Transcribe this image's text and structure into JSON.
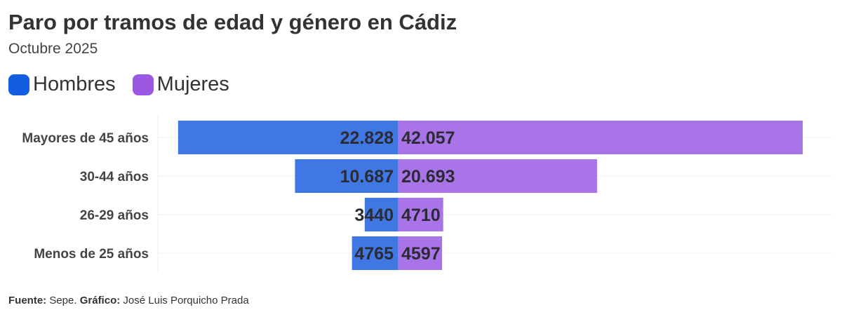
{
  "chart_data": {
    "type": "bar",
    "orientation": "horizontal-diverging",
    "title": "Paro por tramos de edad y género en Cádiz",
    "subtitle": "Octubre 2025",
    "categories": [
      "Mayores de 45 años",
      "30-44 años",
      "26-29 años",
      "Menos de 25 años"
    ],
    "series": [
      {
        "name": "Hombres",
        "values": [
          22828,
          10687,
          3440,
          4765
        ],
        "labels": [
          "22.828",
          "10.687",
          "3440",
          "4765"
        ],
        "color": "#4078e3",
        "legend_color": "#155de0"
      },
      {
        "name": "Mujeres",
        "values": [
          42057,
          20693,
          4710,
          4597
        ],
        "labels": [
          "42.057",
          "20.693",
          "4710",
          "4597"
        ],
        "color": "#a874e8",
        "legend_color": "#9b59e3"
      }
    ],
    "legend": "top-left",
    "grid": true
  },
  "footer": {
    "source_label": "Fuente:",
    "source": " Sepe. ",
    "credit_label": "Gráfico:",
    "credit": " José Luis Porquicho Prada"
  }
}
